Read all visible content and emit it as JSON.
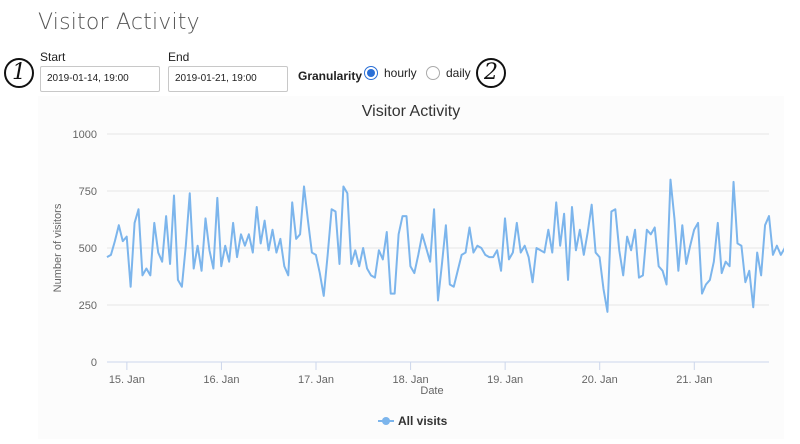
{
  "page": {
    "title": "Visitor Activity"
  },
  "controls": {
    "start_label": "Start",
    "start_value": "2019-01-14, 19:00",
    "end_label": "End",
    "end_value": "2019-01-21, 19:00",
    "granularity_label": "Granularity",
    "options": [
      {
        "label": "hourly",
        "selected": true
      },
      {
        "label": "daily",
        "selected": false
      }
    ]
  },
  "callouts": {
    "one": "1",
    "two": "2"
  },
  "colors": {
    "accent": "#2a6fd6",
    "series": "#7cb5ec"
  },
  "chart_data": {
    "type": "line",
    "title": "Visitor Activity",
    "xlabel": "Date",
    "ylabel": "Number of visitors",
    "xlim": [
      14.79,
      21.79
    ],
    "ylim": [
      0,
      1000
    ],
    "yticks": [
      0,
      250,
      500,
      750,
      1000
    ],
    "xtick_values": [
      15,
      16,
      17,
      18,
      19,
      20,
      21
    ],
    "xtick_labels": [
      "15. Jan",
      "16. Jan",
      "17. Jan",
      "18. Jan",
      "19. Jan",
      "20. Jan",
      "21. Jan"
    ],
    "grid": true,
    "legend_position": "bottom-center",
    "series": [
      {
        "name": "All visits",
        "x_start": 14.79,
        "x_step_hours": 1,
        "values": [
          460,
          470,
          530,
          600,
          530,
          550,
          330,
          610,
          670,
          380,
          410,
          380,
          610,
          480,
          440,
          640,
          430,
          730,
          360,
          330,
          510,
          740,
          410,
          510,
          400,
          630,
          490,
          410,
          720,
          420,
          510,
          440,
          610,
          460,
          560,
          510,
          560,
          480,
          680,
          520,
          620,
          490,
          580,
          480,
          540,
          420,
          380,
          700,
          540,
          560,
          770,
          620,
          480,
          470,
          390,
          290,
          470,
          670,
          660,
          430,
          770,
          740,
          430,
          490,
          420,
          500,
          410,
          380,
          370,
          490,
          450,
          570,
          300,
          300,
          560,
          640,
          640,
          420,
          390,
          470,
          560,
          500,
          440,
          670,
          270,
          430,
          600,
          340,
          330,
          400,
          470,
          480,
          590,
          480,
          510,
          500,
          470,
          460,
          460,
          490,
          400,
          630,
          450,
          480,
          610,
          480,
          510,
          460,
          350,
          500,
          490,
          480,
          580,
          480,
          700,
          510,
          650,
          360,
          680,
          490,
          580,
          470,
          570,
          690,
          480,
          460,
          320,
          220,
          660,
          670,
          490,
          380,
          550,
          490,
          580,
          370,
          380,
          580,
          560,
          590,
          420,
          400,
          340,
          800,
          630,
          400,
          600,
          430,
          510,
          580,
          610,
          300,
          340,
          360,
          440,
          610,
          390,
          440,
          420,
          790,
          520,
          510,
          350,
          400,
          240,
          480,
          380,
          600,
          640,
          470,
          510,
          470,
          500,
          660
        ]
      }
    ]
  }
}
